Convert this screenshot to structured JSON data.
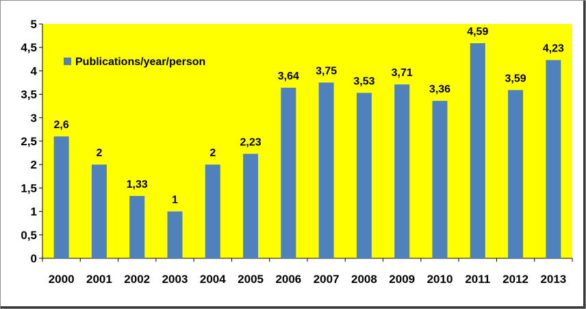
{
  "chart_data": {
    "type": "bar",
    "categories": [
      "2000",
      "2001",
      "2002",
      "2003",
      "2004",
      "2005",
      "2006",
      "2007",
      "2008",
      "2009",
      "2010",
      "2011",
      "2012",
      "2013"
    ],
    "series": [
      {
        "name": "Publications/year/person",
        "values": [
          2.6,
          2,
          1.33,
          1,
          2,
          2.23,
          3.64,
          3.75,
          3.53,
          3.71,
          3.36,
          4.59,
          3.59,
          4.23
        ],
        "labels": [
          "2,6",
          "2",
          "1,33",
          "1",
          "2",
          "2,23",
          "3,64",
          "3,75",
          "3,53",
          "3,71",
          "3,36",
          "4,59",
          "3,59",
          "4,23"
        ],
        "color": "#4f81bd"
      }
    ],
    "ylim": [
      0,
      5
    ],
    "yticks": [
      0,
      0.5,
      1,
      1.5,
      2,
      2.5,
      3,
      3.5,
      4,
      4.5,
      5
    ],
    "ytick_labels": [
      "0",
      "0,5",
      "1",
      "1,5",
      "2",
      "2,5",
      "3",
      "3,5",
      "4",
      "4,5",
      "5"
    ],
    "grid": false,
    "legend_position": "top-left",
    "plot_background": "#ffff00",
    "title": "",
    "xlabel": "",
    "ylabel": ""
  }
}
